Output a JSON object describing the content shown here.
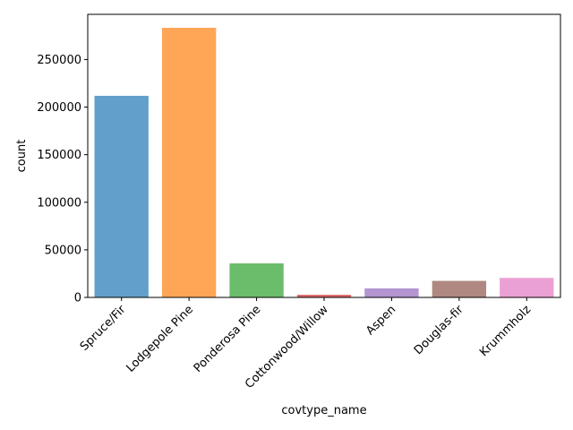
{
  "chart_data": {
    "type": "bar",
    "title": "",
    "xlabel": "covtype_name",
    "ylabel": "count",
    "categories": [
      "Spruce/Fir",
      "Lodgepole Pine",
      "Ponderosa Pine",
      "Cottonwood/Willow",
      "Aspen",
      "Douglas-fir",
      "Krummholz"
    ],
    "values": [
      211840,
      283301,
      35754,
      2747,
      9493,
      17367,
      20510
    ],
    "colors": [
      "#1f77b4",
      "#ff7f0e",
      "#2ca02c",
      "#d62728",
      "#9467bd",
      "#8c564b",
      "#e377c2"
    ],
    "bar_alpha": 0.7,
    "yticks": [
      0,
      50000,
      100000,
      150000,
      200000,
      250000
    ],
    "ylim": [
      0,
      297466
    ],
    "grid": false,
    "x_tick_rotation": 45
  }
}
